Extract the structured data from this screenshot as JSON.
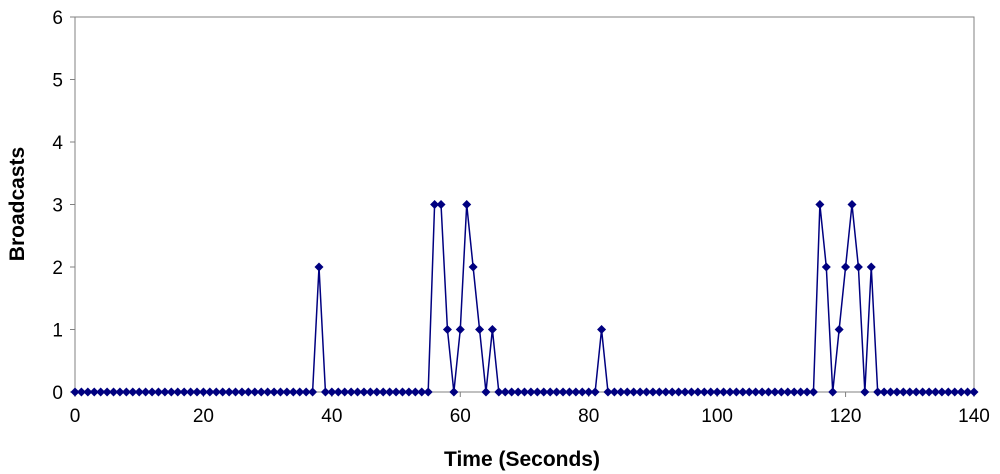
{
  "chart_data": {
    "type": "line",
    "title": "",
    "xlabel": "Time (Seconds)",
    "ylabel": "Broadcasts",
    "xlim": [
      0,
      140
    ],
    "ylim": [
      0,
      6
    ],
    "xticks": [
      0,
      20,
      40,
      60,
      80,
      100,
      120,
      140
    ],
    "yticks": [
      0,
      1,
      2,
      3,
      4,
      5,
      6
    ],
    "grid": false,
    "legend": "none",
    "marker": "diamond",
    "color": "#000080",
    "series": [
      {
        "x": [
          0,
          1,
          2,
          3,
          4,
          5,
          6,
          7,
          8,
          9,
          10,
          11,
          12,
          13,
          14,
          15,
          16,
          17,
          18,
          19,
          20,
          21,
          22,
          23,
          24,
          25,
          26,
          27,
          28,
          29,
          30,
          31,
          32,
          33,
          34,
          35,
          36,
          37,
          38,
          39,
          40,
          41,
          42,
          43,
          44,
          45,
          46,
          47,
          48,
          49,
          50,
          51,
          52,
          53,
          54,
          55,
          56,
          57,
          58,
          59,
          60,
          61,
          62,
          63,
          64,
          65,
          66,
          67,
          68,
          69,
          70,
          71,
          72,
          73,
          74,
          75,
          76,
          77,
          78,
          79,
          80,
          81,
          82,
          83,
          84,
          85,
          86,
          87,
          88,
          89,
          90,
          91,
          92,
          93,
          94,
          95,
          96,
          97,
          98,
          99,
          100,
          101,
          102,
          103,
          104,
          105,
          106,
          107,
          108,
          109,
          110,
          111,
          112,
          113,
          114,
          115,
          116,
          117,
          118,
          119,
          120,
          121,
          122,
          123,
          124,
          125,
          126,
          127,
          128,
          129,
          130,
          131,
          132,
          133,
          134,
          135,
          136,
          137,
          138,
          139,
          140
        ],
        "values": [
          0,
          0,
          0,
          0,
          0,
          0,
          0,
          0,
          0,
          0,
          0,
          0,
          0,
          0,
          0,
          0,
          0,
          0,
          0,
          0,
          0,
          0,
          0,
          0,
          0,
          0,
          0,
          0,
          0,
          0,
          0,
          0,
          0,
          0,
          0,
          0,
          0,
          0,
          2,
          0,
          0,
          0,
          0,
          0,
          0,
          0,
          0,
          0,
          0,
          0,
          0,
          0,
          0,
          0,
          0,
          0,
          3,
          3,
          1,
          0,
          1,
          3,
          2,
          1,
          0,
          1,
          0,
          0,
          0,
          0,
          0,
          0,
          0,
          0,
          0,
          0,
          0,
          0,
          0,
          0,
          0,
          0,
          1,
          0,
          0,
          0,
          0,
          0,
          0,
          0,
          0,
          0,
          0,
          0,
          0,
          0,
          0,
          0,
          0,
          0,
          0,
          0,
          0,
          0,
          0,
          0,
          0,
          0,
          0,
          0,
          0,
          0,
          0,
          0,
          0,
          0,
          3,
          2,
          0,
          1,
          2,
          3,
          2,
          0,
          2,
          0,
          0,
          0,
          0,
          0,
          0,
          0,
          0,
          0,
          0,
          0,
          0,
          0,
          0,
          0,
          0
        ]
      }
    ]
  }
}
